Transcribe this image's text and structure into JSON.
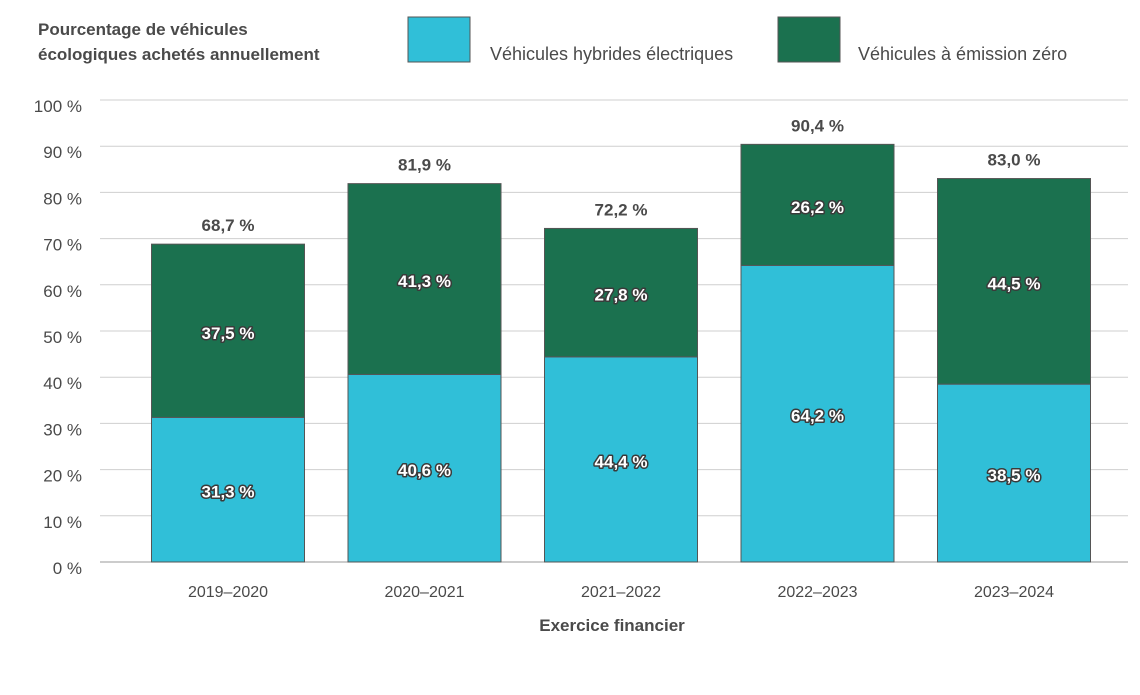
{
  "chart_data": {
    "type": "bar",
    "stacked": true,
    "title": "",
    "ylabel": "Pourcentage de véhicules écologiques achetés annuellement",
    "ylabel_lines": [
      "Pourcentage de véhicules",
      "écologiques achetés annuellement"
    ],
    "xlabel": "Exercice financier",
    "categories": [
      "2019–2020",
      "2020–2021",
      "2021–2022",
      "2022–2023",
      "2023–2024"
    ],
    "series": [
      {
        "name": "Véhicules hybrides électriques",
        "color": "#30bfd8",
        "values": [
          31.3,
          40.6,
          44.4,
          64.2,
          38.5
        ],
        "labels": [
          "31,3 %",
          "40,6 %",
          "44,4 %",
          "64,2 %",
          "38,5 %"
        ]
      },
      {
        "name": "Véhicules à émission zéro",
        "color": "#1b714f",
        "values": [
          37.5,
          41.3,
          27.8,
          26.2,
          44.5
        ],
        "labels": [
          "37,5 %",
          "41,3 %",
          "27,8 %",
          "26,2 %",
          "44,5 %"
        ]
      }
    ],
    "totals": [
      68.7,
      81.9,
      72.2,
      90.4,
      83.0
    ],
    "total_labels": [
      "68,7 %",
      "81,9 %",
      "72,2 %",
      "90,4 %",
      "83,0 %"
    ],
    "ylim": [
      0,
      100
    ],
    "yticks": [
      0,
      10,
      20,
      30,
      40,
      50,
      60,
      70,
      80,
      90,
      100
    ],
    "ytick_labels": [
      "0 %",
      "10 %",
      "20 %",
      "30 %",
      "40 %",
      "50 %",
      "60 %",
      "70 %",
      "80 %",
      "90 %",
      "100 %"
    ],
    "grid": true,
    "legend_position": "top"
  }
}
